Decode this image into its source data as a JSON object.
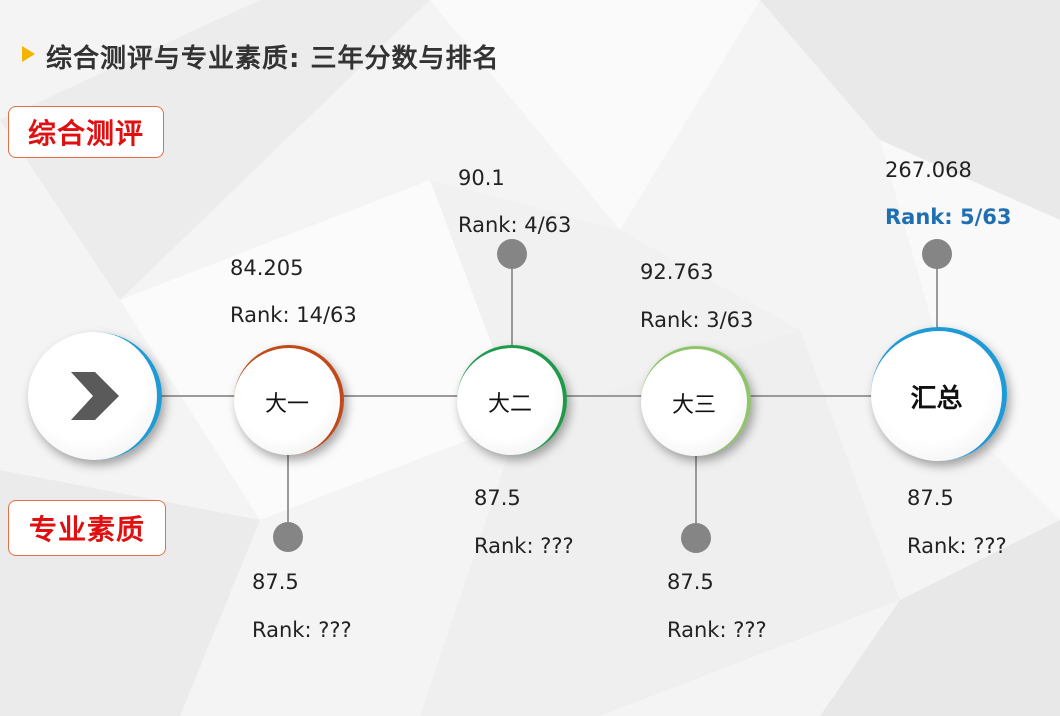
{
  "slide": {
    "title": "综合测评与专业素质: 三年分数与排名"
  },
  "tags": {
    "comprehensive": "综合测评",
    "professional": "专业素质"
  },
  "start_icon": "chevron-right-icon",
  "nodes": [
    {
      "label": "大一",
      "ring_color": "#c14a1a",
      "comprehensive": {
        "score": "84.205",
        "rank": "Rank: 14/63"
      },
      "professional": {
        "score": "87.5",
        "rank": "Rank: ???"
      }
    },
    {
      "label": "大二",
      "ring_color": "#1f9a4a",
      "comprehensive": {
        "score": "90.1",
        "rank": "Rank: 4/63"
      },
      "professional": {
        "score": "87.5",
        "rank": "Rank: ???"
      }
    },
    {
      "label": "大三",
      "ring_color": "#8fc46a",
      "comprehensive": {
        "score": "92.763",
        "rank": "Rank: 3/63"
      },
      "professional": {
        "score": "87.5",
        "rank": "Rank: ???"
      }
    },
    {
      "label": "汇总",
      "ring_color": "#1e9ad6",
      "comprehensive": {
        "score": "267.068",
        "rank": "Rank: 5/63"
      },
      "professional": {
        "score": "87.5",
        "rank": "Rank: ???"
      }
    }
  ],
  "colors": {
    "accent_triangle": "#f2b400",
    "tag_text": "#e01010",
    "total_rank": "#1f6fb2",
    "start_ring": "#1e9ad6"
  }
}
